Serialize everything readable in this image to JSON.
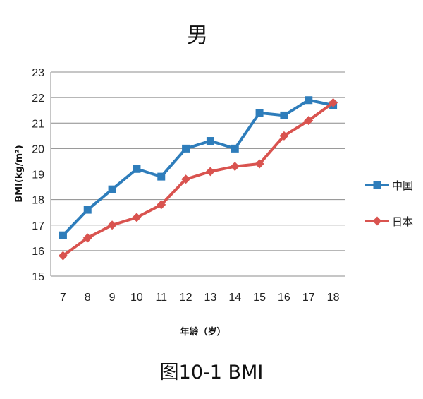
{
  "chart_data": {
    "type": "line",
    "title": "男",
    "xlabel": "年龄（岁）",
    "ylabel": "BMI(kg/m²)",
    "x": [
      7,
      8,
      9,
      10,
      11,
      12,
      13,
      14,
      15,
      16,
      17,
      18
    ],
    "ylim": [
      15,
      23
    ],
    "yticks": [
      15,
      16,
      17,
      18,
      19,
      20,
      21,
      22,
      23
    ],
    "grid": true,
    "legend_position": "right",
    "series": [
      {
        "name": "中国",
        "color": "#2e7dbb",
        "marker": "square",
        "values": [
          16.6,
          17.6,
          18.4,
          19.2,
          18.9,
          20.0,
          20.3,
          20.0,
          21.4,
          21.3,
          21.9,
          21.7
        ]
      },
      {
        "name": "日本",
        "color": "#d9534f",
        "marker": "diamond",
        "values": [
          15.8,
          16.5,
          17.0,
          17.3,
          17.8,
          18.8,
          19.1,
          19.3,
          19.4,
          20.5,
          21.1,
          21.8
        ]
      }
    ]
  },
  "caption": "图10-1  BMI"
}
